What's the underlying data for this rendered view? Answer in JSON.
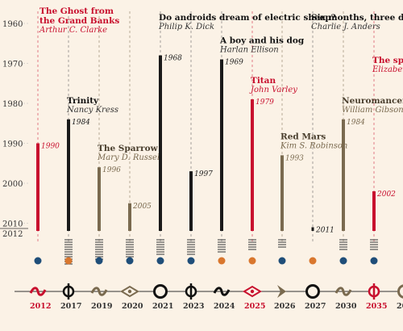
{
  "chart_data": {
    "type": "bar",
    "y_axis": {
      "ticks": [
        "1960",
        "1970",
        "1980",
        "1990",
        "2000",
        "2010",
        "2012"
      ],
      "range": [
        1960,
        2012
      ],
      "inverted": true
    },
    "colors": {
      "red": "#c8102e",
      "black": "#1a1a1a",
      "brown": "#7a6a4f",
      "guide": "#999999",
      "axis": "#333333"
    },
    "films": [
      {
        "category": "2012",
        "title": "The Ghost from the Grand Banks",
        "author": "Arthur C. Clarke",
        "published": "1990",
        "value": 1990,
        "color": "red",
        "dot": "blue",
        "symbol": "tilde-red",
        "stripes": 0,
        "guide": "red"
      },
      {
        "category": "2017",
        "title": "Trinity",
        "author": "Nancy Kress",
        "published": "1984",
        "value": 1984,
        "color": "black",
        "dot": "orange",
        "symbol": "phi-black",
        "stripes": 11,
        "guide": "black"
      },
      {
        "category": "2019",
        "title": "The Sparrow",
        "author": "Mary D. Russel",
        "published": "1996",
        "value": 1996,
        "color": "brown",
        "dot": "blue",
        "symbol": "tilde-brown",
        "stripes": 9,
        "guide": "brown"
      },
      {
        "category": "2020",
        "title": "",
        "author": "",
        "published": "2005",
        "value": 2005,
        "color": "brown",
        "dot": "blue",
        "symbol": "diamond-brown",
        "stripes": 8,
        "guide": "brown"
      },
      {
        "category": "2021",
        "title": "Do androids dream of electric sheep?",
        "author": "Philip K. Dick",
        "published": "1968",
        "value": 1968,
        "color": "black",
        "dot": "blue",
        "symbol": "circle-black",
        "stripes": 7,
        "guide": "black"
      },
      {
        "category": "2023",
        "title": "",
        "author": "",
        "published": "1997",
        "value": 1997,
        "color": "black",
        "dot": "blue",
        "symbol": "phi-black",
        "stripes": 7,
        "guide": "black"
      },
      {
        "category": "2024",
        "title": "A boy and his dog",
        "author": "Harlan Ellison",
        "published": "1969",
        "value": 1969,
        "color": "black",
        "dot": "orange",
        "symbol": "tilde-black",
        "stripes": 6,
        "guide": "black"
      },
      {
        "category": "2025",
        "title": "Titan",
        "author": "John Varley",
        "published": "1979",
        "value": 1979,
        "color": "red",
        "dot": "orange",
        "symbol": "diamond-red",
        "stripes": 5,
        "guide": "red"
      },
      {
        "category": "2026",
        "title": "Red Mars",
        "author": "Kim S. Robinson",
        "published": "1993",
        "value": 1993,
        "color": "brown",
        "dot": "blue",
        "symbol": "chevron-brown",
        "stripes": 4,
        "guide": "brown"
      },
      {
        "category": "2027",
        "title": "Six months, three days",
        "author": "Charlie J. Anders",
        "published": "2011",
        "value": 2011,
        "color": "black",
        "dot": "orange",
        "symbol": "circle-black",
        "stripes": 0,
        "guide": "black"
      },
      {
        "category": "2030",
        "title": "Neuromancer",
        "author": "William Gibson",
        "published": "1984",
        "value": 1984,
        "color": "brown",
        "dot": "blue",
        "symbol": "tilde-brown",
        "stripes": 5,
        "guide": "brown"
      },
      {
        "category": "2035",
        "title": "The spe",
        "author": "Elizabet",
        "published": "2002",
        "value": 2002,
        "color": "red",
        "dot": "blue",
        "symbol": "phi-red",
        "stripes": 5,
        "guide": "red"
      },
      {
        "category": "20",
        "title": "",
        "author": "",
        "published": "",
        "value": null,
        "color": "brown",
        "dot": "",
        "symbol": "circle-brown",
        "stripes": 0,
        "guide": "none"
      }
    ],
    "dot_colors": {
      "blue": "#1f4e79",
      "orange": "#d9772e"
    }
  }
}
